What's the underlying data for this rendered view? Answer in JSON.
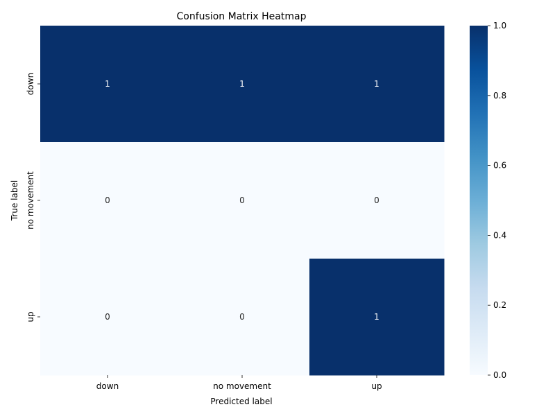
{
  "chart_data": {
    "type": "heatmap",
    "title": "Confusion Matrix Heatmap",
    "xlabel": "Predicted label",
    "ylabel": "True label",
    "x_categories": [
      "down",
      "no movement",
      "up"
    ],
    "y_categories": [
      "down",
      "no movement",
      "up"
    ],
    "values": [
      [
        1,
        1,
        1
      ],
      [
        0,
        0,
        0
      ],
      [
        0,
        0,
        1
      ]
    ],
    "annotations": true,
    "colormap": "Blues",
    "color_low": "#f7fbff",
    "color_high": "#08306b",
    "colorbar": {
      "range": [
        0,
        1
      ],
      "ticks": [
        "0.0",
        "0.2",
        "0.4",
        "0.6",
        "0.8",
        "1.0"
      ]
    }
  }
}
